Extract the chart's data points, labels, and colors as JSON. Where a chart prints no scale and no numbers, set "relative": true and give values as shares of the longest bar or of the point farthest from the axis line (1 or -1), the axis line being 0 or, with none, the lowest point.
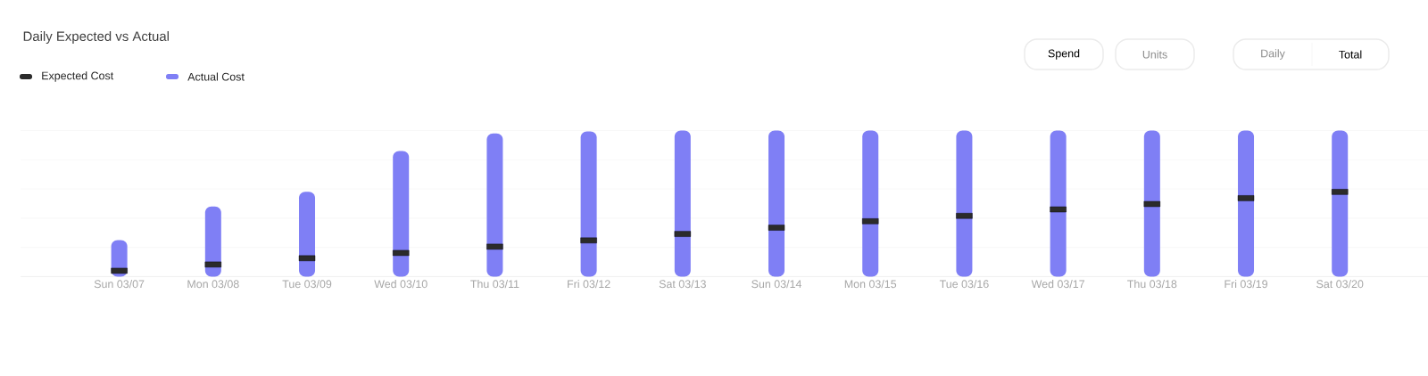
{
  "chart_data": {
    "type": "bar",
    "title": "Daily Expected vs Actual",
    "relative": true,
    "grid": "y",
    "legend": "top left",
    "categories": [
      "Sun 03/07",
      "Mon 03/08",
      "Tue 03/09",
      "Wed 03/10",
      "Thu 03/11",
      "Fri 03/12",
      "Sat 03/13",
      "Sun 03/14",
      "Mon 03/15",
      "Tue 03/16",
      "Wed 03/17",
      "Thu 03/18",
      "Fri 03/19",
      "Sat 03/20"
    ],
    "series": [
      {
        "name": "Expected Cost",
        "type": "scatter",
        "color": "#2b2b2b",
        "values": [
          0.04,
          0.083,
          0.126,
          0.162,
          0.205,
          0.248,
          0.292,
          0.335,
          0.379,
          0.416,
          0.46,
          0.497,
          0.537,
          0.58
        ]
      },
      {
        "name": "Actual Cost",
        "type": "bar",
        "color": "#7f7ff5",
        "values": [
          0.25,
          0.48,
          0.58,
          0.86,
          0.98,
          0.994,
          1.0,
          1.0,
          1.0,
          1.0,
          1.0,
          1.0,
          1.0,
          1.0
        ]
      }
    ],
    "annotations": [
      "Spend",
      "Units",
      "Daily",
      "Total"
    ]
  }
}
